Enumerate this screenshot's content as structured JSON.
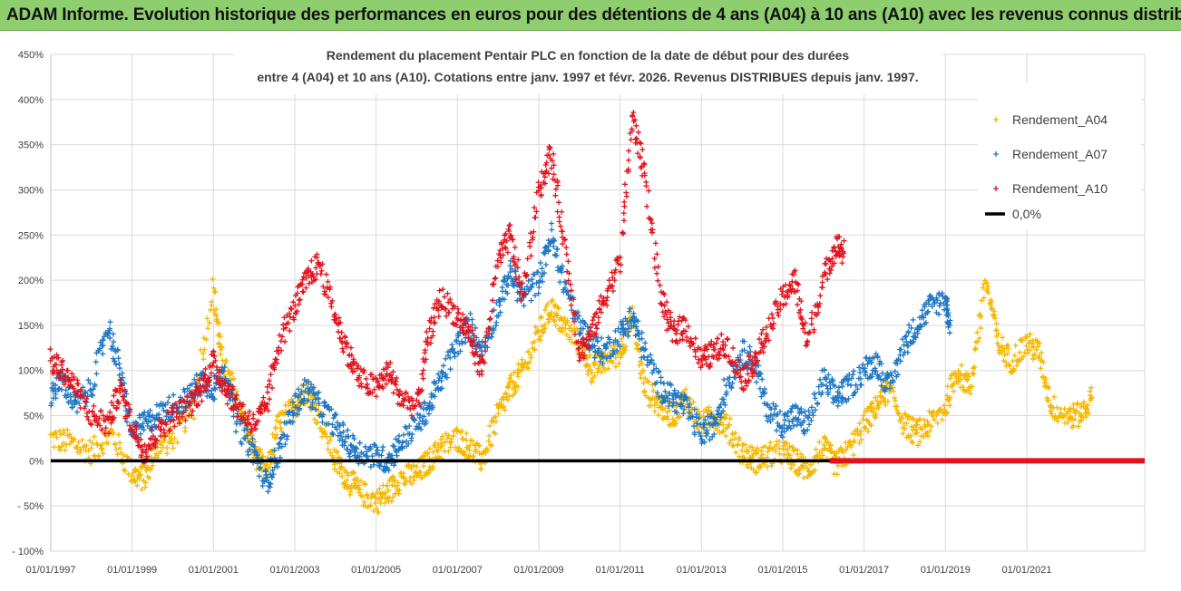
{
  "banner": {
    "title": "ADAM Informe. Evolution historique des performances en euros pour des détentions de 4 ans (A04) à 10 ans (A10) avec les revenus connus distribués"
  },
  "colors": {
    "banner_bg": "#8fce6f",
    "A04": "#f5b800",
    "A07": "#1f77c4",
    "A10": "#e0141e",
    "zero": "#000000",
    "grid": "#d9d9d9"
  },
  "chart_data": {
    "type": "scatter",
    "title_line1": "Rendement du placement Pentair PLC en fonction de la date de début pour des durées",
    "title_line2": "entre 4 (A04) et 10 ans (A10). Cotations entre janv. 1997 et févr. 2026. Revenus DISTRIBUES depuis janv. 1997.",
    "xlabel": "",
    "ylabel": "",
    "ylim": [
      -100,
      450
    ],
    "y_ticks": [
      "450%",
      "400%",
      "350%",
      "300%",
      "250%",
      "200%",
      "150%",
      "100%",
      "50%",
      "0%",
      "- 50%",
      "- 100%"
    ],
    "y_tick_values": [
      450,
      400,
      350,
      300,
      250,
      200,
      150,
      100,
      50,
      0,
      -50,
      -100
    ],
    "x_range": [
      1997.0,
      2023.9
    ],
    "x_tick_labels": [
      "01/01/1997",
      "01/01/1999",
      "01/01/2001",
      "01/01/2003",
      "01/01/2005",
      "01/01/2007",
      "01/01/2009",
      "01/01/2011",
      "01/01/2013",
      "01/01/2015",
      "01/01/2017",
      "01/01/2019",
      "01/01/2021"
    ],
    "x_tick_values": [
      1997,
      1999,
      2001,
      2003,
      2005,
      2007,
      2009,
      2011,
      2013,
      2015,
      2017,
      2019,
      2021
    ],
    "grid": true,
    "legend_position": "top-right",
    "series": [
      {
        "name": "Rendement_A04",
        "marker": "+",
        "color": "#f5b800",
        "points": [
          [
            1997.0,
            25
          ],
          [
            1997.5,
            20
          ],
          [
            1998.0,
            10
          ],
          [
            1998.5,
            30
          ],
          [
            1999.0,
            -15
          ],
          [
            1999.3,
            -20
          ],
          [
            1999.6,
            15
          ],
          [
            2000.0,
            25
          ],
          [
            2000.5,
            60
          ],
          [
            2001.0,
            190
          ],
          [
            2001.2,
            110
          ],
          [
            2001.5,
            80
          ],
          [
            2001.8,
            40
          ],
          [
            2002.0,
            10
          ],
          [
            2002.3,
            -15
          ],
          [
            2002.6,
            40
          ],
          [
            2003.0,
            60
          ],
          [
            2003.3,
            80
          ],
          [
            2003.6,
            50
          ],
          [
            2004.0,
            0
          ],
          [
            2004.3,
            -20
          ],
          [
            2004.6,
            -35
          ],
          [
            2005.0,
            -45
          ],
          [
            2005.3,
            -35
          ],
          [
            2005.6,
            -20
          ],
          [
            2006.0,
            -15
          ],
          [
            2006.3,
            0
          ],
          [
            2006.6,
            15
          ],
          [
            2007.0,
            25
          ],
          [
            2007.3,
            15
          ],
          [
            2007.6,
            0
          ],
          [
            2008.0,
            50
          ],
          [
            2008.3,
            80
          ],
          [
            2008.6,
            100
          ],
          [
            2009.0,
            140
          ],
          [
            2009.3,
            170
          ],
          [
            2009.6,
            150
          ],
          [
            2010.0,
            130
          ],
          [
            2010.3,
            100
          ],
          [
            2010.6,
            110
          ],
          [
            2011.0,
            120
          ],
          [
            2011.3,
            160
          ],
          [
            2011.6,
            80
          ],
          [
            2012.0,
            60
          ],
          [
            2012.3,
            50
          ],
          [
            2012.6,
            70
          ],
          [
            2013.0,
            40
          ],
          [
            2013.3,
            50
          ],
          [
            2013.6,
            40
          ],
          [
            2014.0,
            10
          ],
          [
            2014.3,
            0
          ],
          [
            2014.6,
            5
          ],
          [
            2015.0,
            10
          ],
          [
            2015.3,
            0
          ],
          [
            2015.6,
            -10
          ],
          [
            2016.0,
            15
          ],
          [
            2016.3,
            -5
          ],
          [
            2016.6,
            10
          ],
          [
            2017.0,
            40
          ],
          [
            2017.3,
            60
          ],
          [
            2017.6,
            80
          ],
          [
            2018.0,
            40
          ],
          [
            2018.3,
            30
          ],
          [
            2018.6,
            40
          ],
          [
            2019.0,
            60
          ],
          [
            2019.3,
            100
          ],
          [
            2019.6,
            80
          ],
          [
            2020.0,
            200
          ],
          [
            2020.3,
            130
          ],
          [
            2020.6,
            110
          ],
          [
            2021.0,
            130
          ],
          [
            2021.3,
            120
          ],
          [
            2021.6,
            60
          ],
          [
            2022.0,
            50
          ],
          [
            2022.3,
            50
          ],
          [
            2022.6,
            70
          ]
        ]
      },
      {
        "name": "Rendement_A07",
        "marker": "+",
        "color": "#1f77c4",
        "points": [
          [
            1997.0,
            75
          ],
          [
            1997.3,
            90
          ],
          [
            1997.6,
            60
          ],
          [
            1998.0,
            80
          ],
          [
            1998.4,
            150
          ],
          [
            1998.7,
            100
          ],
          [
            1999.0,
            30
          ],
          [
            1999.3,
            40
          ],
          [
            1999.6,
            50
          ],
          [
            2000.0,
            60
          ],
          [
            2000.4,
            70
          ],
          [
            2000.7,
            90
          ],
          [
            2001.0,
            80
          ],
          [
            2001.3,
            100
          ],
          [
            2001.6,
            40
          ],
          [
            2002.0,
            10
          ],
          [
            2002.3,
            -25
          ],
          [
            2002.6,
            10
          ],
          [
            2003.0,
            60
          ],
          [
            2003.3,
            80
          ],
          [
            2003.6,
            60
          ],
          [
            2004.0,
            40
          ],
          [
            2004.3,
            20
          ],
          [
            2004.6,
            10
          ],
          [
            2005.0,
            5
          ],
          [
            2005.3,
            0
          ],
          [
            2005.6,
            20
          ],
          [
            2006.0,
            40
          ],
          [
            2006.3,
            60
          ],
          [
            2006.6,
            90
          ],
          [
            2007.0,
            130
          ],
          [
            2007.3,
            150
          ],
          [
            2007.6,
            120
          ],
          [
            2008.0,
            170
          ],
          [
            2008.3,
            210
          ],
          [
            2008.6,
            180
          ],
          [
            2009.0,
            200
          ],
          [
            2009.3,
            250
          ],
          [
            2009.6,
            200
          ],
          [
            2010.0,
            150
          ],
          [
            2010.3,
            130
          ],
          [
            2010.6,
            120
          ],
          [
            2011.0,
            140
          ],
          [
            2011.3,
            160
          ],
          [
            2011.6,
            120
          ],
          [
            2012.0,
            80
          ],
          [
            2012.3,
            70
          ],
          [
            2012.6,
            60
          ],
          [
            2013.0,
            30
          ],
          [
            2013.3,
            40
          ],
          [
            2013.6,
            80
          ],
          [
            2014.0,
            120
          ],
          [
            2014.3,
            110
          ],
          [
            2014.6,
            60
          ],
          [
            2015.0,
            40
          ],
          [
            2015.3,
            50
          ],
          [
            2015.6,
            40
          ],
          [
            2016.0,
            90
          ],
          [
            2016.3,
            70
          ],
          [
            2016.6,
            80
          ],
          [
            2017.0,
            100
          ],
          [
            2017.3,
            110
          ],
          [
            2017.6,
            80
          ],
          [
            2018.0,
            130
          ],
          [
            2018.3,
            150
          ],
          [
            2018.6,
            170
          ],
          [
            2019.0,
            180
          ],
          [
            2019.1,
            150
          ]
        ]
      },
      {
        "name": "Rendement_A10",
        "marker": "+",
        "color": "#e0141e",
        "points": [
          [
            1997.0,
            110
          ],
          [
            1997.3,
            100
          ],
          [
            1997.6,
            80
          ],
          [
            1998.0,
            50
          ],
          [
            1998.4,
            40
          ],
          [
            1998.7,
            80
          ],
          [
            1999.0,
            40
          ],
          [
            1999.3,
            10
          ],
          [
            1999.6,
            30
          ],
          [
            2000.0,
            50
          ],
          [
            2000.4,
            60
          ],
          [
            2000.7,
            80
          ],
          [
            2001.0,
            110
          ],
          [
            2001.3,
            80
          ],
          [
            2001.6,
            60
          ],
          [
            2002.0,
            40
          ],
          [
            2002.3,
            60
          ],
          [
            2002.6,
            130
          ],
          [
            2003.0,
            170
          ],
          [
            2003.3,
            200
          ],
          [
            2003.6,
            220
          ],
          [
            2004.0,
            160
          ],
          [
            2004.3,
            120
          ],
          [
            2004.6,
            90
          ],
          [
            2005.0,
            80
          ],
          [
            2005.3,
            100
          ],
          [
            2005.6,
            70
          ],
          [
            2006.0,
            60
          ],
          [
            2006.3,
            140
          ],
          [
            2006.6,
            180
          ],
          [
            2007.0,
            160
          ],
          [
            2007.3,
            140
          ],
          [
            2007.6,
            100
          ],
          [
            2008.0,
            220
          ],
          [
            2008.3,
            250
          ],
          [
            2008.6,
            180
          ],
          [
            2009.0,
            300
          ],
          [
            2009.3,
            340
          ],
          [
            2009.6,
            250
          ],
          [
            2010.0,
            120
          ],
          [
            2010.3,
            140
          ],
          [
            2010.6,
            180
          ],
          [
            2011.0,
            220
          ],
          [
            2011.3,
            380
          ],
          [
            2011.6,
            320
          ],
          [
            2012.0,
            180
          ],
          [
            2012.3,
            140
          ],
          [
            2012.6,
            150
          ],
          [
            2013.0,
            110
          ],
          [
            2013.3,
            120
          ],
          [
            2013.6,
            130
          ],
          [
            2014.0,
            90
          ],
          [
            2014.3,
            110
          ],
          [
            2014.6,
            140
          ],
          [
            2015.0,
            180
          ],
          [
            2015.3,
            200
          ],
          [
            2015.6,
            130
          ],
          [
            2016.0,
            200
          ],
          [
            2016.3,
            240
          ],
          [
            2016.5,
            230
          ]
        ]
      },
      {
        "name": "0,0%",
        "type": "line",
        "color": "#000000",
        "points": [
          [
            1997.0,
            0
          ],
          [
            2023.9,
            0
          ]
        ]
      }
    ],
    "zero_markers": {
      "from": 2016.15,
      "to": 2023.9,
      "value": 0,
      "color": "#e0141e"
    }
  }
}
